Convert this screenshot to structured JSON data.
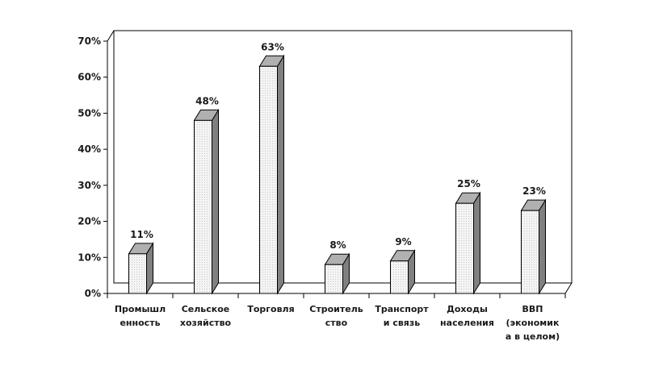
{
  "chart_data": {
    "type": "bar",
    "categories": [
      [
        "Промышл",
        "енность"
      ],
      [
        "Сельское",
        "хозяйство"
      ],
      [
        "Торговля"
      ],
      [
        "Строитель",
        "ство"
      ],
      [
        "Транспорт",
        "и связь"
      ],
      [
        "Доходы",
        "населения"
      ],
      [
        "ВВП",
        "(экономик",
        "а в целом)"
      ]
    ],
    "values": [
      11,
      48,
      63,
      8,
      9,
      25,
      23
    ],
    "data_labels": [
      "11%",
      "48%",
      "63%",
      "8%",
      "9%",
      "25%",
      "23%"
    ],
    "ylim": [
      0,
      70
    ],
    "yticks": [
      0,
      10,
      20,
      30,
      40,
      50,
      60,
      70
    ],
    "ytick_labels": [
      "0%",
      "10%",
      "20%",
      "30%",
      "40%",
      "50%",
      "60%",
      "70%"
    ],
    "title": "",
    "xlabel": "",
    "ylabel": "",
    "grid": false,
    "legend": false,
    "style": "3d-columns",
    "colors": {
      "bar_front": "#f2f2f2",
      "bar_top": "#b0b0b0",
      "bar_side": "#808080",
      "outline": "#000000"
    }
  }
}
